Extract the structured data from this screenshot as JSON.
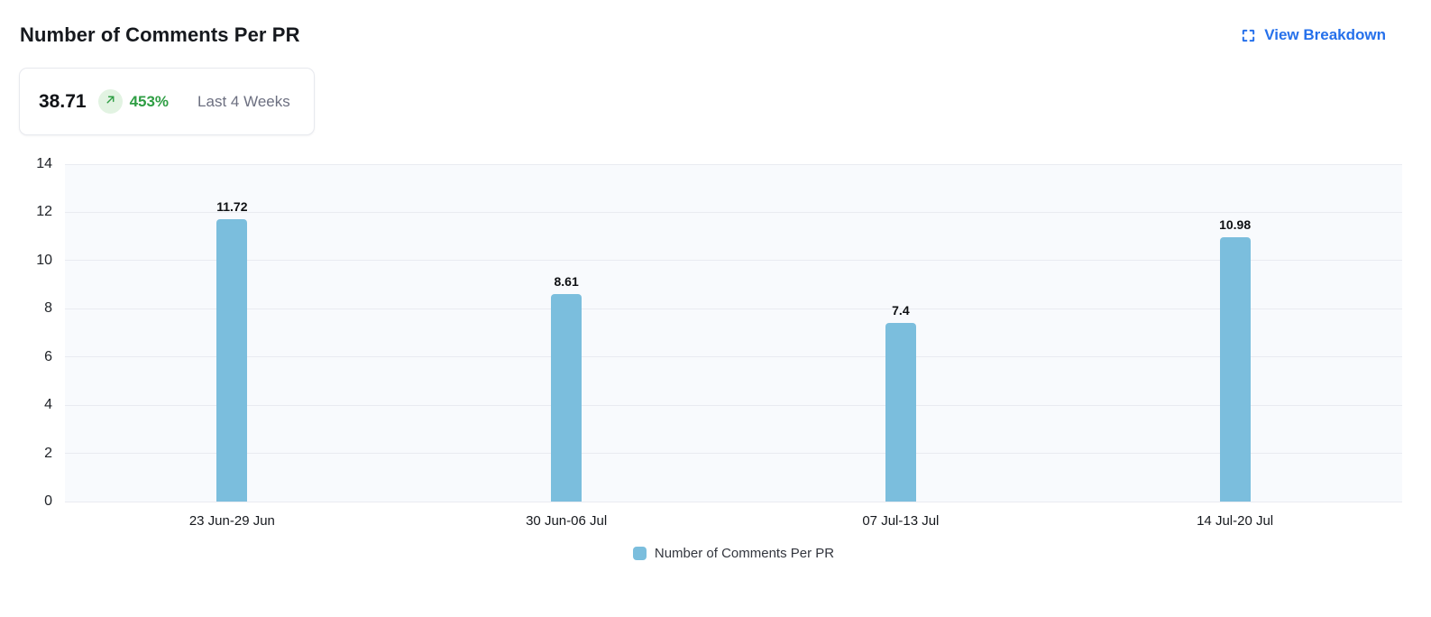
{
  "header": {
    "title": "Number of Comments Per PR",
    "view_breakdown_label": "View Breakdown"
  },
  "summary_card": {
    "value": "38.71",
    "change_percent": "453%",
    "change_direction": "up",
    "trend_icon": "arrow-up-right-icon",
    "period_label": "Last 4 Weeks"
  },
  "colors": {
    "bar": "#7bbedd",
    "link_blue": "#2570eb",
    "positive_green": "#2f9e44",
    "positive_badge_bg": "#e2f3e2",
    "plot_background": "#f8fafd",
    "gridline": "#e9ebf1"
  },
  "chart_data": {
    "type": "bar",
    "title": "Number of Comments Per PR",
    "categories": [
      "23 Jun-29 Jun",
      "30 Jun-06 Jul",
      "07 Jul-13 Jul",
      "14 Jul-20 Jul"
    ],
    "values": [
      11.72,
      8.61,
      7.4,
      10.98
    ],
    "value_labels": [
      "11.72",
      "8.61",
      "7.4",
      "10.98"
    ],
    "xlabel": "",
    "ylabel": "",
    "ylim": [
      0,
      14
    ],
    "yticks": [
      0,
      2,
      4,
      6,
      8,
      10,
      12,
      14
    ],
    "grid": true,
    "bar_color": "#7bbedd",
    "legend_position": "bottom",
    "legend": [
      {
        "label": "Number of Comments Per PR",
        "color": "#7bbedd"
      }
    ]
  }
}
